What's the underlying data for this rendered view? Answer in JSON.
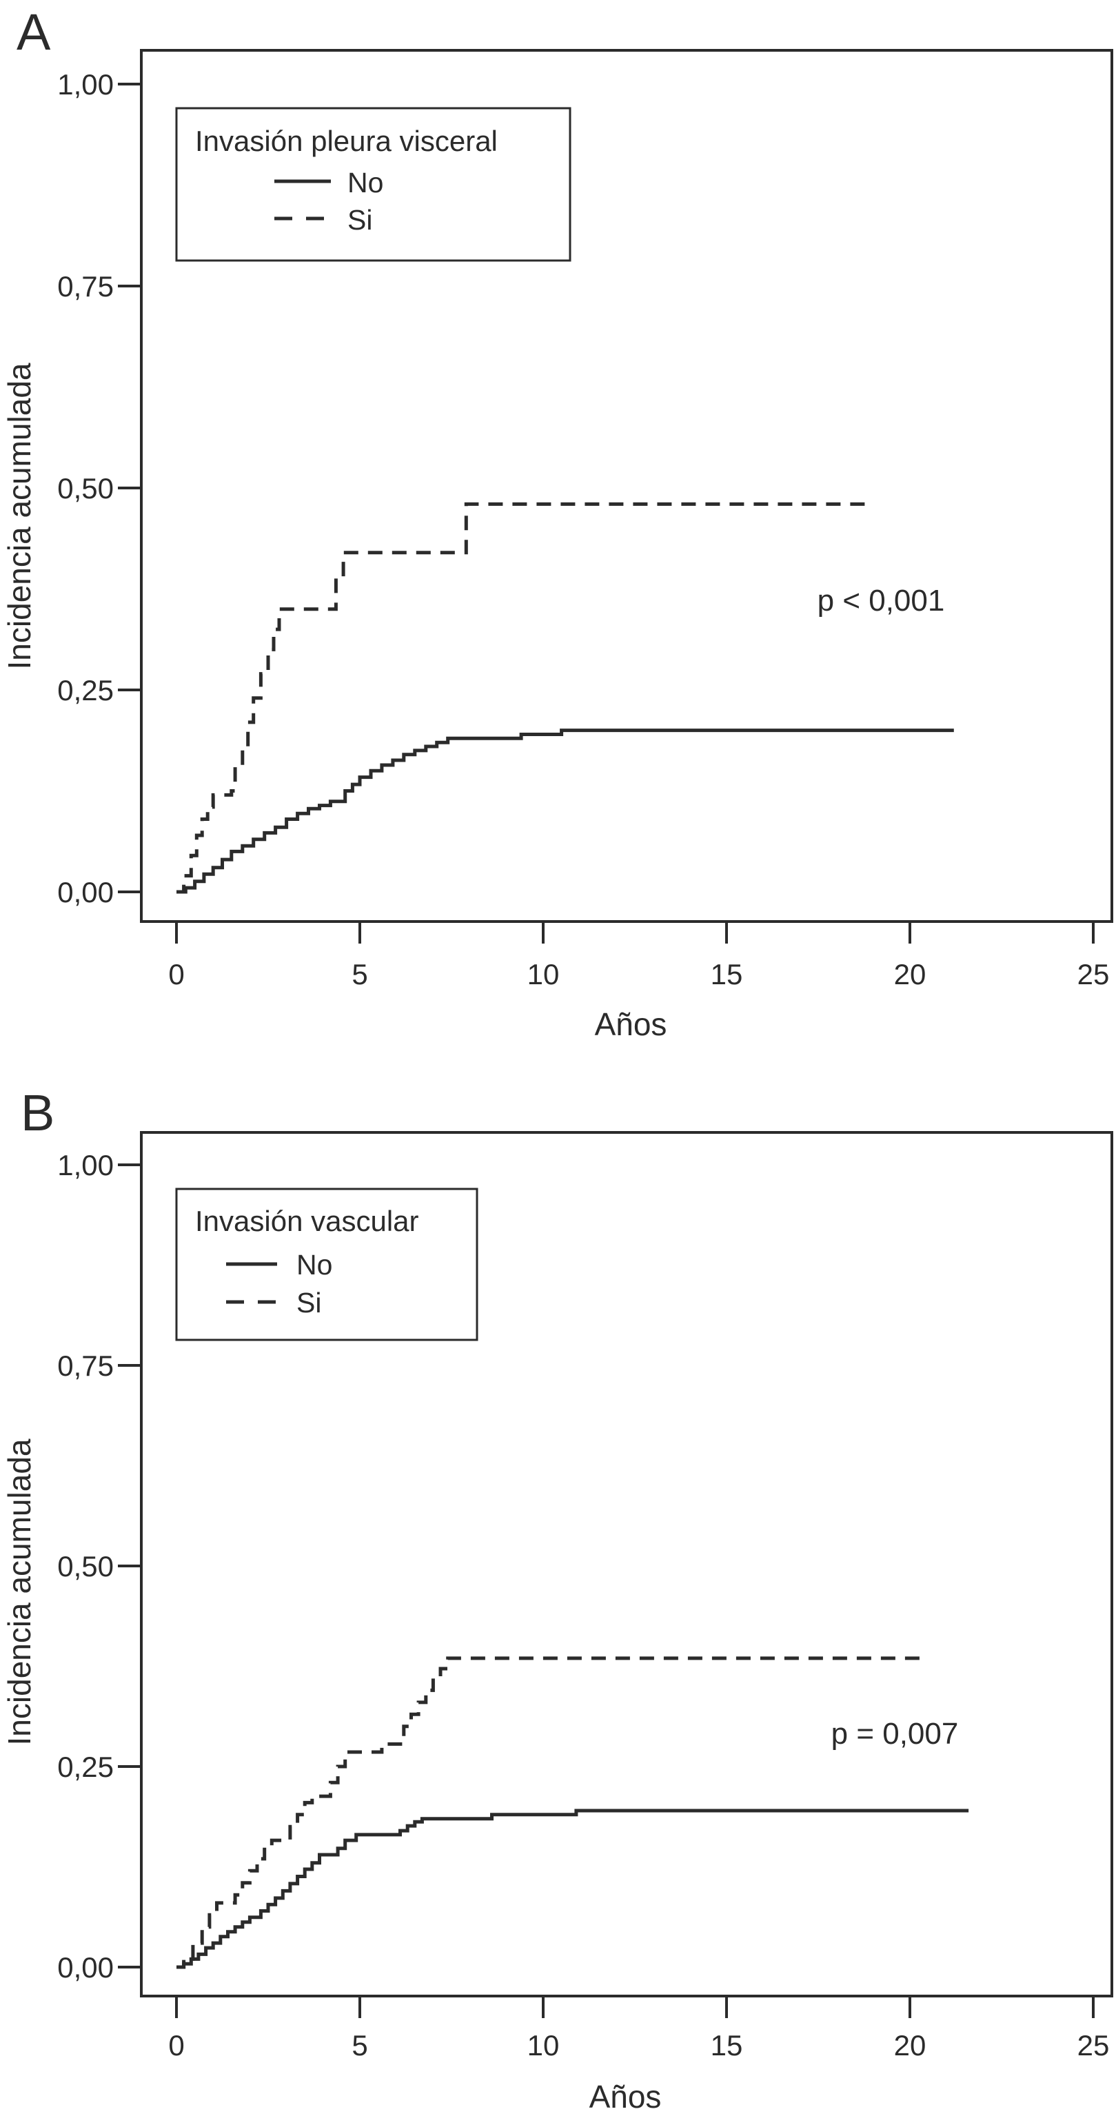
{
  "figure": {
    "background": "#ffffff",
    "line_color": "#2b2b2b"
  },
  "chart_data": [
    {
      "type": "line",
      "subtype": "cumulative-incidence-step",
      "panel_letter": "A",
      "legend_title": "Invasión pleura visceral",
      "legend_position": "upper-left",
      "legend_items": [
        {
          "label": "No",
          "style": "solid"
        },
        {
          "label": "Si",
          "style": "dashed"
        }
      ],
      "p_label": "p < 0,001",
      "ylabel": "Incidencia acumulada",
      "xlabel": "Años",
      "xlim": [
        0,
        25.5
      ],
      "ylim": [
        0,
        1.04
      ],
      "grid": false,
      "xticks": [
        0,
        5,
        10,
        15,
        20,
        25
      ],
      "xticklabels": [
        "0",
        "5",
        "10",
        "15",
        "20",
        "25"
      ],
      "yticks": [
        0,
        0.25,
        0.5,
        0.75,
        1.0
      ],
      "yticklabels": [
        "0,00",
        "0,25",
        "0,50",
        "0,75",
        "1,00"
      ],
      "series": [
        {
          "name": "No",
          "style": "solid",
          "step_points": [
            [
              0,
              0
            ],
            [
              0.25,
              0.005
            ],
            [
              0.5,
              0.013
            ],
            [
              0.75,
              0.022
            ],
            [
              1.0,
              0.03
            ],
            [
              1.25,
              0.04
            ],
            [
              1.5,
              0.05
            ],
            [
              1.8,
              0.057
            ],
            [
              2.1,
              0.065
            ],
            [
              2.4,
              0.073
            ],
            [
              2.7,
              0.08
            ],
            [
              3.0,
              0.09
            ],
            [
              3.3,
              0.097
            ],
            [
              3.6,
              0.103
            ],
            [
              3.9,
              0.107
            ],
            [
              4.2,
              0.112
            ],
            [
              4.6,
              0.125
            ],
            [
              4.8,
              0.133
            ],
            [
              5.0,
              0.142
            ],
            [
              5.3,
              0.15
            ],
            [
              5.6,
              0.157
            ],
            [
              5.9,
              0.163
            ],
            [
              6.2,
              0.17
            ],
            [
              6.5,
              0.175
            ],
            [
              6.8,
              0.18
            ],
            [
              7.1,
              0.185
            ],
            [
              7.4,
              0.19
            ],
            [
              9.4,
              0.195
            ],
            [
              10.5,
              0.2
            ],
            [
              21.2,
              0.2
            ]
          ]
        },
        {
          "name": "Si",
          "style": "dashed",
          "step_points": [
            [
              0,
              0
            ],
            [
              0.2,
              0.02
            ],
            [
              0.4,
              0.045
            ],
            [
              0.55,
              0.07
            ],
            [
              0.7,
              0.09
            ],
            [
              0.85,
              0.105
            ],
            [
              1.0,
              0.12
            ],
            [
              1.5,
              0.125
            ],
            [
              1.6,
              0.155
            ],
            [
              1.8,
              0.18
            ],
            [
              1.95,
              0.21
            ],
            [
              2.1,
              0.24
            ],
            [
              2.3,
              0.27
            ],
            [
              2.5,
              0.3
            ],
            [
              2.65,
              0.325
            ],
            [
              2.8,
              0.35
            ],
            [
              4.35,
              0.39
            ],
            [
              4.55,
              0.42
            ],
            [
              7.9,
              0.48
            ],
            [
              18.9,
              0.48
            ]
          ]
        }
      ]
    },
    {
      "type": "line",
      "subtype": "cumulative-incidence-step",
      "panel_letter": "B",
      "legend_title": "Invasión vascular",
      "legend_position": "upper-left",
      "legend_items": [
        {
          "label": "No",
          "style": "solid"
        },
        {
          "label": "Si",
          "style": "dashed"
        }
      ],
      "p_label": "p = 0,007",
      "ylabel": "Incidencia acumulada",
      "xlabel": "Años",
      "xlim": [
        0,
        25.5
      ],
      "ylim": [
        0,
        1.04
      ],
      "grid": false,
      "xticks": [
        0,
        5,
        10,
        15,
        20,
        25
      ],
      "xticklabels": [
        "0",
        "5",
        "10",
        "15",
        "20",
        "25"
      ],
      "yticks": [
        0,
        0.25,
        0.5,
        0.75,
        1.0
      ],
      "yticklabels": [
        "0,00",
        "0,25",
        "0,50",
        "0,75",
        "1,00"
      ],
      "series": [
        {
          "name": "No",
          "style": "solid",
          "step_points": [
            [
              0,
              0
            ],
            [
              0.2,
              0.004
            ],
            [
              0.4,
              0.01
            ],
            [
              0.6,
              0.016
            ],
            [
              0.8,
              0.024
            ],
            [
              1.0,
              0.03
            ],
            [
              1.2,
              0.038
            ],
            [
              1.4,
              0.044
            ],
            [
              1.6,
              0.05
            ],
            [
              1.8,
              0.056
            ],
            [
              2.0,
              0.062
            ],
            [
              2.3,
              0.07
            ],
            [
              2.5,
              0.078
            ],
            [
              2.7,
              0.086
            ],
            [
              2.9,
              0.095
            ],
            [
              3.1,
              0.104
            ],
            [
              3.3,
              0.113
            ],
            [
              3.5,
              0.122
            ],
            [
              3.7,
              0.13
            ],
            [
              3.9,
              0.14
            ],
            [
              4.4,
              0.148
            ],
            [
              4.6,
              0.158
            ],
            [
              4.9,
              0.165
            ],
            [
              6.1,
              0.17
            ],
            [
              6.3,
              0.176
            ],
            [
              6.5,
              0.181
            ],
            [
              6.7,
              0.185
            ],
            [
              8.6,
              0.19
            ],
            [
              10.9,
              0.195
            ],
            [
              21.6,
              0.195
            ]
          ]
        },
        {
          "name": "Si",
          "style": "dashed",
          "step_points": [
            [
              0,
              0
            ],
            [
              0.2,
              0.01
            ],
            [
              0.45,
              0.03
            ],
            [
              0.7,
              0.05
            ],
            [
              0.9,
              0.065
            ],
            [
              1.1,
              0.08
            ],
            [
              1.6,
              0.09
            ],
            [
              1.8,
              0.105
            ],
            [
              2.0,
              0.12
            ],
            [
              2.2,
              0.135
            ],
            [
              2.4,
              0.15
            ],
            [
              2.6,
              0.158
            ],
            [
              3.1,
              0.175
            ],
            [
              3.3,
              0.19
            ],
            [
              3.5,
              0.205
            ],
            [
              3.7,
              0.213
            ],
            [
              4.2,
              0.23
            ],
            [
              4.4,
              0.25
            ],
            [
              4.6,
              0.268
            ],
            [
              5.6,
              0.278
            ],
            [
              6.2,
              0.3
            ],
            [
              6.4,
              0.315
            ],
            [
              6.6,
              0.33
            ],
            [
              6.8,
              0.345
            ],
            [
              7.0,
              0.36
            ],
            [
              7.2,
              0.372
            ],
            [
              7.4,
              0.385
            ],
            [
              20.4,
              0.385
            ]
          ]
        }
      ]
    }
  ]
}
